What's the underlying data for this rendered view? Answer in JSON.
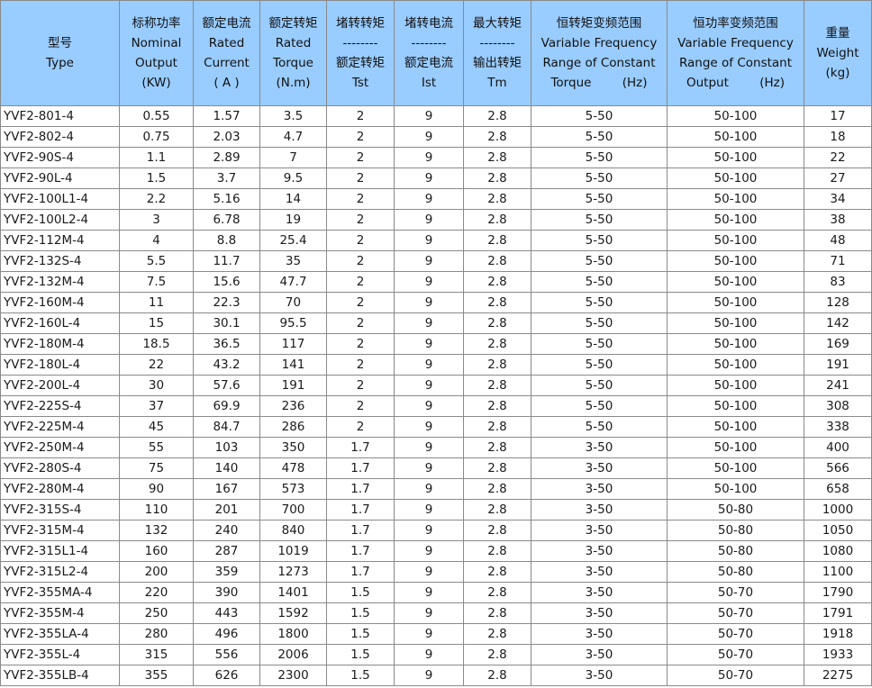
{
  "headers": [
    {
      "key": "type",
      "lines": [
        "型号",
        "Type"
      ]
    },
    {
      "key": "output",
      "lines": [
        "标称功率",
        "Nominal",
        "Output",
        "(KW)"
      ]
    },
    {
      "key": "current",
      "lines": [
        "额定电流",
        "Rated",
        "Current",
        "( A )"
      ]
    },
    {
      "key": "torque",
      "lines": [
        "额定转矩",
        "Rated",
        "Torque",
        "(N.m)"
      ]
    },
    {
      "key": "tst",
      "lines": [
        "堵转转矩",
        "--------",
        "额定转矩",
        "Tst"
      ]
    },
    {
      "key": "ist",
      "lines": [
        "堵转电流",
        "--------",
        "额定电流",
        "Ist"
      ]
    },
    {
      "key": "tm",
      "lines": [
        "最大转矩",
        "--------",
        "输出转矩",
        "Tm"
      ]
    },
    {
      "key": "ct_range",
      "lines": [
        "恒转矩变频范围",
        "Variable Frequency",
        "Range of Constant",
        "Torque        (Hz)"
      ]
    },
    {
      "key": "cp_range",
      "lines": [
        "恒功率变频范围",
        "Variable Frequency",
        "Range of Constant",
        "Output        (Hz)"
      ]
    },
    {
      "key": "weight",
      "lines": [
        "重量",
        "Weight",
        "(kg)"
      ]
    }
  ],
  "rows": [
    [
      "YVF2-801-4",
      "0.55",
      "1.57",
      "3.5",
      "2",
      "9",
      "2.8",
      "5-50",
      "50-100",
      "17"
    ],
    [
      "YVF2-802-4",
      "0.75",
      "2.03",
      "4.7",
      "2",
      "9",
      "2.8",
      "5-50",
      "50-100",
      "18"
    ],
    [
      "YVF2-90S-4",
      "1.1",
      "2.89",
      "7",
      "2",
      "9",
      "2.8",
      "5-50",
      "50-100",
      "22"
    ],
    [
      "YVF2-90L-4",
      "1.5",
      "3.7",
      "9.5",
      "2",
      "9",
      "2.8",
      "5-50",
      "50-100",
      "27"
    ],
    [
      "YVF2-100L1-4",
      "2.2",
      "5.16",
      "14",
      "2",
      "9",
      "2.8",
      "5-50",
      "50-100",
      "34"
    ],
    [
      "YVF2-100L2-4",
      "3",
      "6.78",
      "19",
      "2",
      "9",
      "2.8",
      "5-50",
      "50-100",
      "38"
    ],
    [
      "YVF2-112M-4",
      "4",
      "8.8",
      "25.4",
      "2",
      "9",
      "2.8",
      "5-50",
      "50-100",
      "48"
    ],
    [
      "YVF2-132S-4",
      "5.5",
      "11.7",
      "35",
      "2",
      "9",
      "2.8",
      "5-50",
      "50-100",
      "71"
    ],
    [
      "YVF2-132M-4",
      "7.5",
      "15.6",
      "47.7",
      "2",
      "9",
      "2.8",
      "5-50",
      "50-100",
      "83"
    ],
    [
      "YVF2-160M-4",
      "11",
      "22.3",
      "70",
      "2",
      "9",
      "2.8",
      "5-50",
      "50-100",
      "128"
    ],
    [
      "YVF2-160L-4",
      "15",
      "30.1",
      "95.5",
      "2",
      "9",
      "2.8",
      "5-50",
      "50-100",
      "142"
    ],
    [
      "YVF2-180M-4",
      "18.5",
      "36.5",
      "117",
      "2",
      "9",
      "2.8",
      "5-50",
      "50-100",
      "169"
    ],
    [
      "YVF2-180L-4",
      "22",
      "43.2",
      "141",
      "2",
      "9",
      "2.8",
      "5-50",
      "50-100",
      "191"
    ],
    [
      "YVF2-200L-4",
      "30",
      "57.6",
      "191",
      "2",
      "9",
      "2.8",
      "5-50",
      "50-100",
      "241"
    ],
    [
      "YVF2-225S-4",
      "37",
      "69.9",
      "236",
      "2",
      "9",
      "2.8",
      "5-50",
      "50-100",
      "308"
    ],
    [
      "YVF2-225M-4",
      "45",
      "84.7",
      "286",
      "2",
      "9",
      "2.8",
      "5-50",
      "50-100",
      "338"
    ],
    [
      "YVF2-250M-4",
      "55",
      "103",
      "350",
      "1.7",
      "9",
      "2.8",
      "3-50",
      "50-100",
      "400"
    ],
    [
      "YVF2-280S-4",
      "75",
      "140",
      "478",
      "1.7",
      "9",
      "2.8",
      "3-50",
      "50-100",
      "566"
    ],
    [
      "YVF2-280M-4",
      "90",
      "167",
      "573",
      "1.7",
      "9",
      "2.8",
      "3-50",
      "50-100",
      "658"
    ],
    [
      "YVF2-315S-4",
      "110",
      "201",
      "700",
      "1.7",
      "9",
      "2.8",
      "3-50",
      "50-80",
      "1000"
    ],
    [
      "YVF2-315M-4",
      "132",
      "240",
      "840",
      "1.7",
      "9",
      "2.8",
      "3-50",
      "50-80",
      "1050"
    ],
    [
      "YVF2-315L1-4",
      "160",
      "287",
      "1019",
      "1.7",
      "9",
      "2.8",
      "3-50",
      "50-80",
      "1080"
    ],
    [
      "YVF2-315L2-4",
      "200",
      "359",
      "1273",
      "1.7",
      "9",
      "2.8",
      "3-50",
      "50-80",
      "1100"
    ],
    [
      "YVF2-355MA-4",
      "220",
      "390",
      "1401",
      "1.5",
      "9",
      "2.8",
      "3-50",
      "50-70",
      "1790"
    ],
    [
      "YVF2-355M-4",
      "250",
      "443",
      "1592",
      "1.5",
      "9",
      "2.8",
      "3-50",
      "50-70",
      "1791"
    ],
    [
      "YVF2-355LA-4",
      "280",
      "496",
      "1800",
      "1.5",
      "9",
      "2.8",
      "3-50",
      "50-70",
      "1918"
    ],
    [
      "YVF2-355L-4",
      "315",
      "556",
      "2006",
      "1.5",
      "9",
      "2.8",
      "3-50",
      "50-70",
      "1933"
    ],
    [
      "YVF2-355LB-4",
      "355",
      "626",
      "2300",
      "1.5",
      "9",
      "2.8",
      "3-50",
      "50-70",
      "2275"
    ]
  ],
  "colors": {
    "header_bg": "#99ccff",
    "grid": "#8a8a8a",
    "text": "#1a1a1a"
  }
}
